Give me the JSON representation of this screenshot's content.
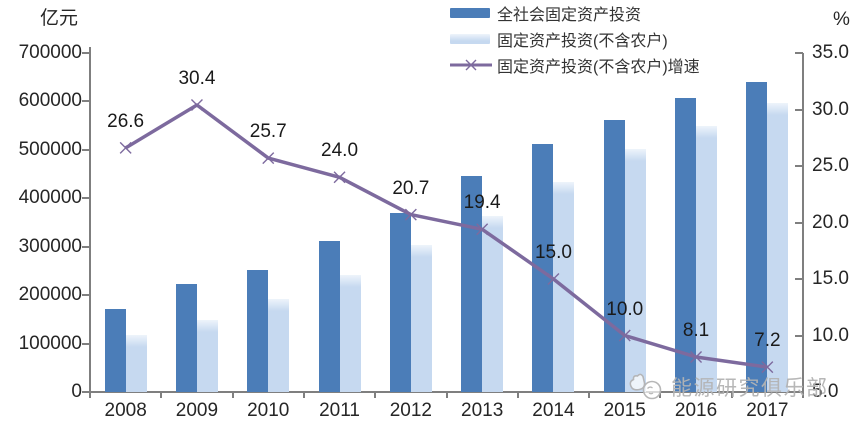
{
  "chart_data": {
    "type": "bar",
    "title": "",
    "categories": [
      "2008",
      "2009",
      "2010",
      "2011",
      "2012",
      "2013",
      "2014",
      "2015",
      "2016",
      "2017"
    ],
    "series": [
      {
        "name": "全社会固定资产投资",
        "type": "bar",
        "color": "#4b7db8",
        "values": [
          172000,
          224000,
          251000,
          311000,
          370000,
          446000,
          512000,
          562000,
          607000,
          640000
        ]
      },
      {
        "name": "固定资产投资(不含农户)",
        "type": "bar",
        "color": "#c6d9f0",
        "values": [
          118000,
          148000,
          192000,
          242000,
          303000,
          363000,
          434000,
          501000,
          550000,
          596000
        ]
      },
      {
        "name": "固定资产投资(不含农户)增速",
        "type": "line",
        "marker": "x",
        "axis": "right",
        "color": "#7d6a9e",
        "values": [
          26.6,
          30.4,
          25.7,
          24.0,
          20.7,
          19.4,
          15.0,
          10.0,
          8.1,
          7.2
        ]
      }
    ],
    "left_axis": {
      "title": "亿元",
      "min": 0,
      "max": 700000,
      "step": 100000
    },
    "right_axis": {
      "title": "%",
      "min": 5,
      "max": 35,
      "step": 5,
      "decimals": 1
    },
    "legend_position": "top-center",
    "grid": false,
    "value_labels_series": 2
  },
  "watermark": {
    "icon": "mascot-logo-icon",
    "text": "能源研究俱乐部"
  }
}
